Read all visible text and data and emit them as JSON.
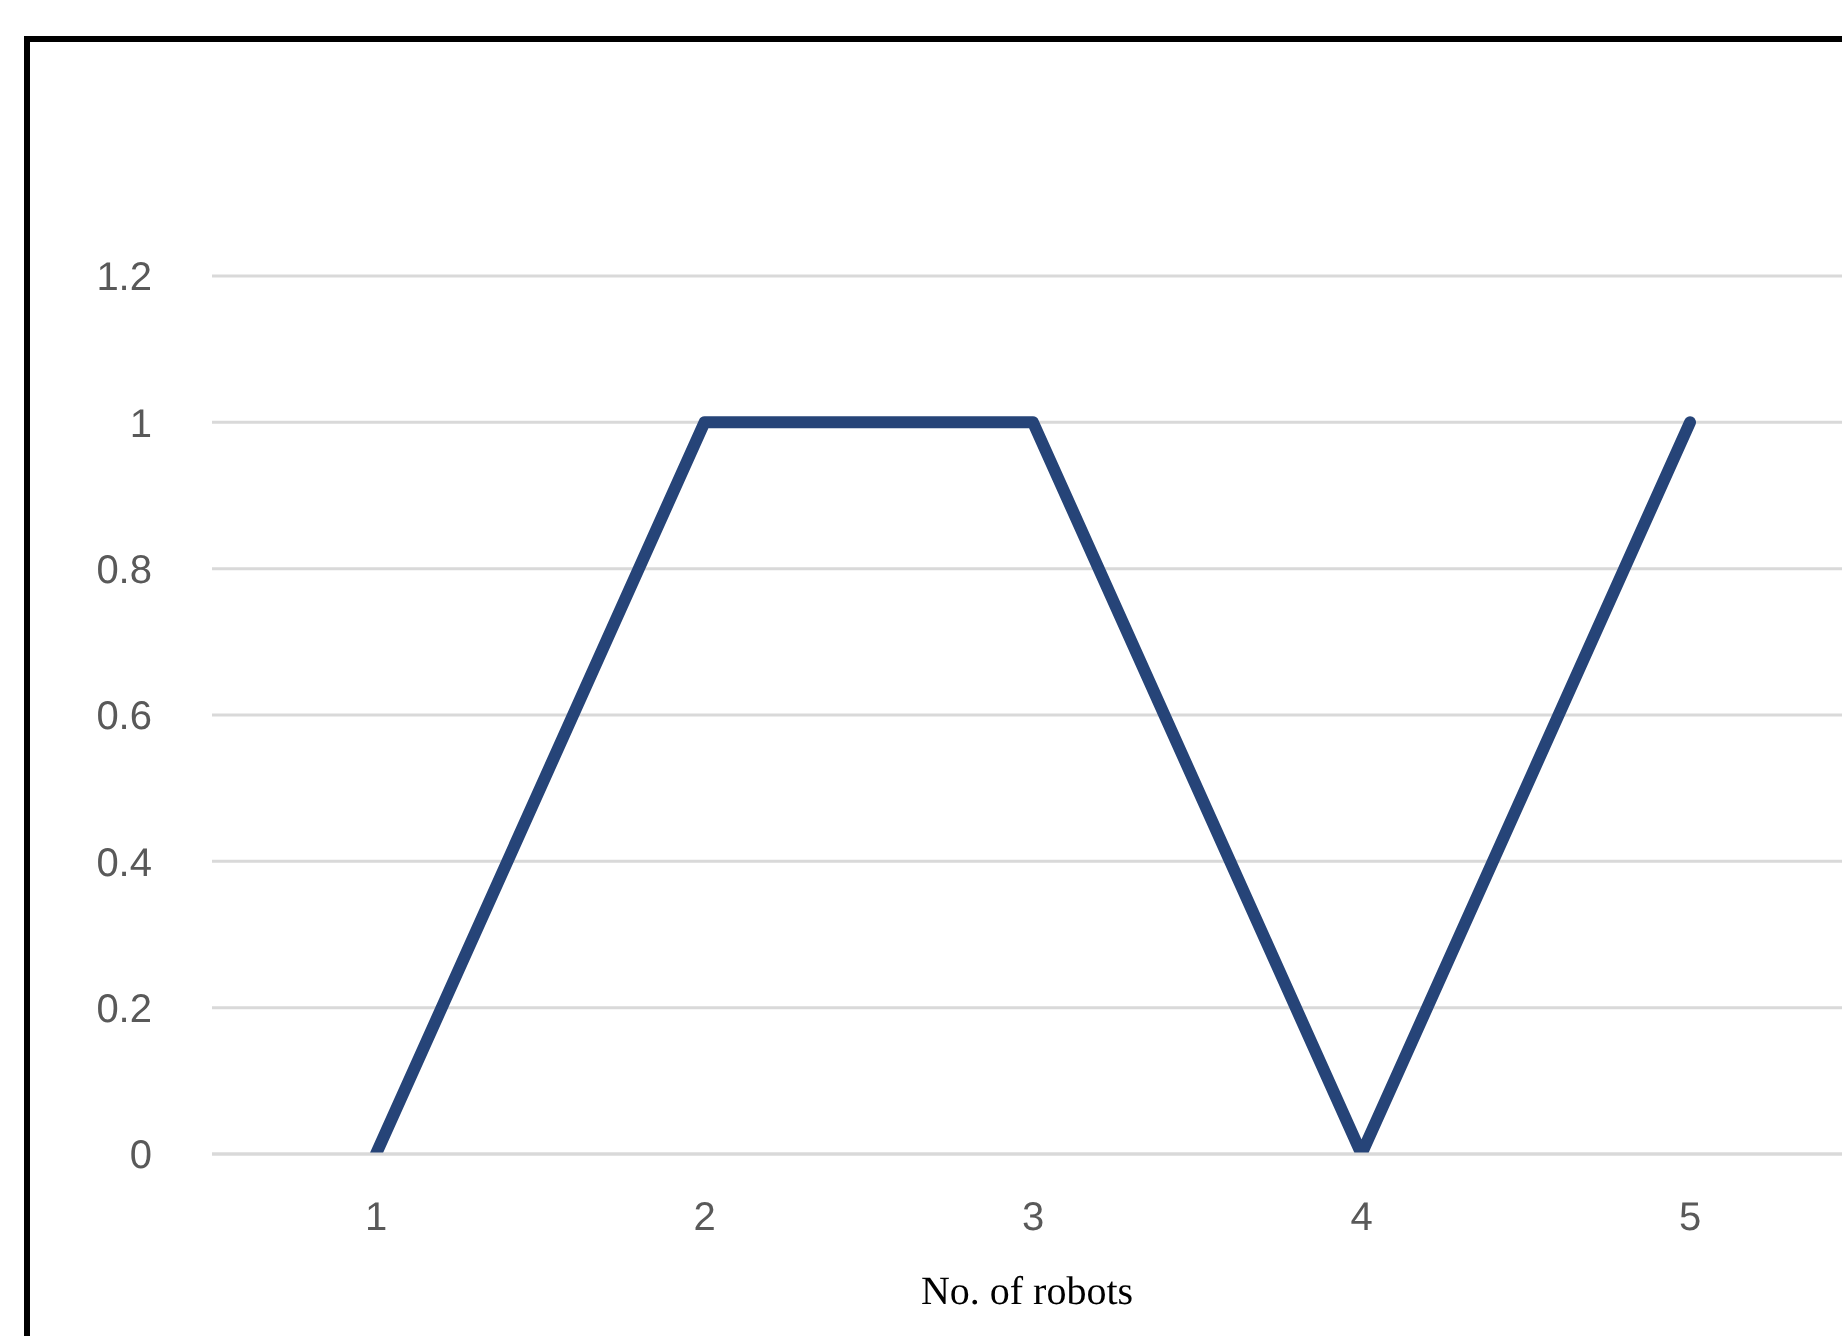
{
  "chart_data": {
    "type": "line",
    "xlabel": "No. of robots",
    "categories": [
      "1",
      "2",
      "3",
      "4",
      "5"
    ],
    "series": [
      {
        "color": "#264478",
        "values": [
          0,
          1,
          1,
          0,
          1
        ]
      }
    ],
    "ylim": [
      0,
      1.2
    ],
    "yticks": [
      0,
      0.2,
      0.4,
      0.6,
      0.8,
      1,
      1.2
    ],
    "grid": "y",
    "legend": false,
    "marker": "none",
    "line_style": "solid"
  }
}
